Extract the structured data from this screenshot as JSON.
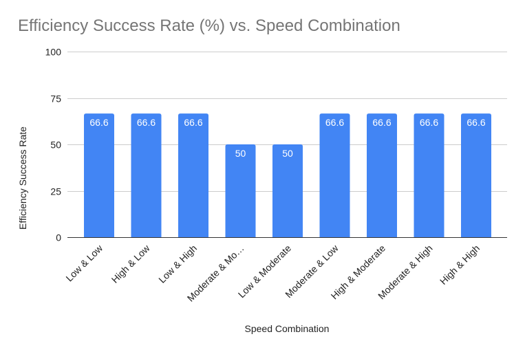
{
  "chart_data": {
    "type": "bar",
    "title": "Efficiency Success Rate (%) vs. Speed Combination",
    "xlabel": "Speed Combination",
    "ylabel": "Efficiency Success Rate",
    "categories": [
      "Low & Low",
      "High & Low",
      "Low & High",
      "Moderate & Mo…",
      "Low & Moderate",
      "Moderate & Low",
      "High & Moderate",
      "Moderate & High",
      "High & High"
    ],
    "values": [
      66.6,
      66.6,
      66.6,
      50,
      50,
      66.6,
      66.6,
      66.6,
      66.6
    ],
    "value_labels": [
      "66.6",
      "66.6",
      "66.6",
      "50",
      "50",
      "66.6",
      "66.6",
      "66.6",
      "66.6"
    ],
    "ylim": [
      0,
      100
    ],
    "yticks": [
      0,
      25,
      50,
      75,
      100
    ],
    "ytick_labels": [
      "0",
      "25",
      "50",
      "75",
      "100"
    ],
    "grid": true,
    "legend": "none",
    "bar_color": "#4285f4",
    "title_color": "#757575"
  }
}
